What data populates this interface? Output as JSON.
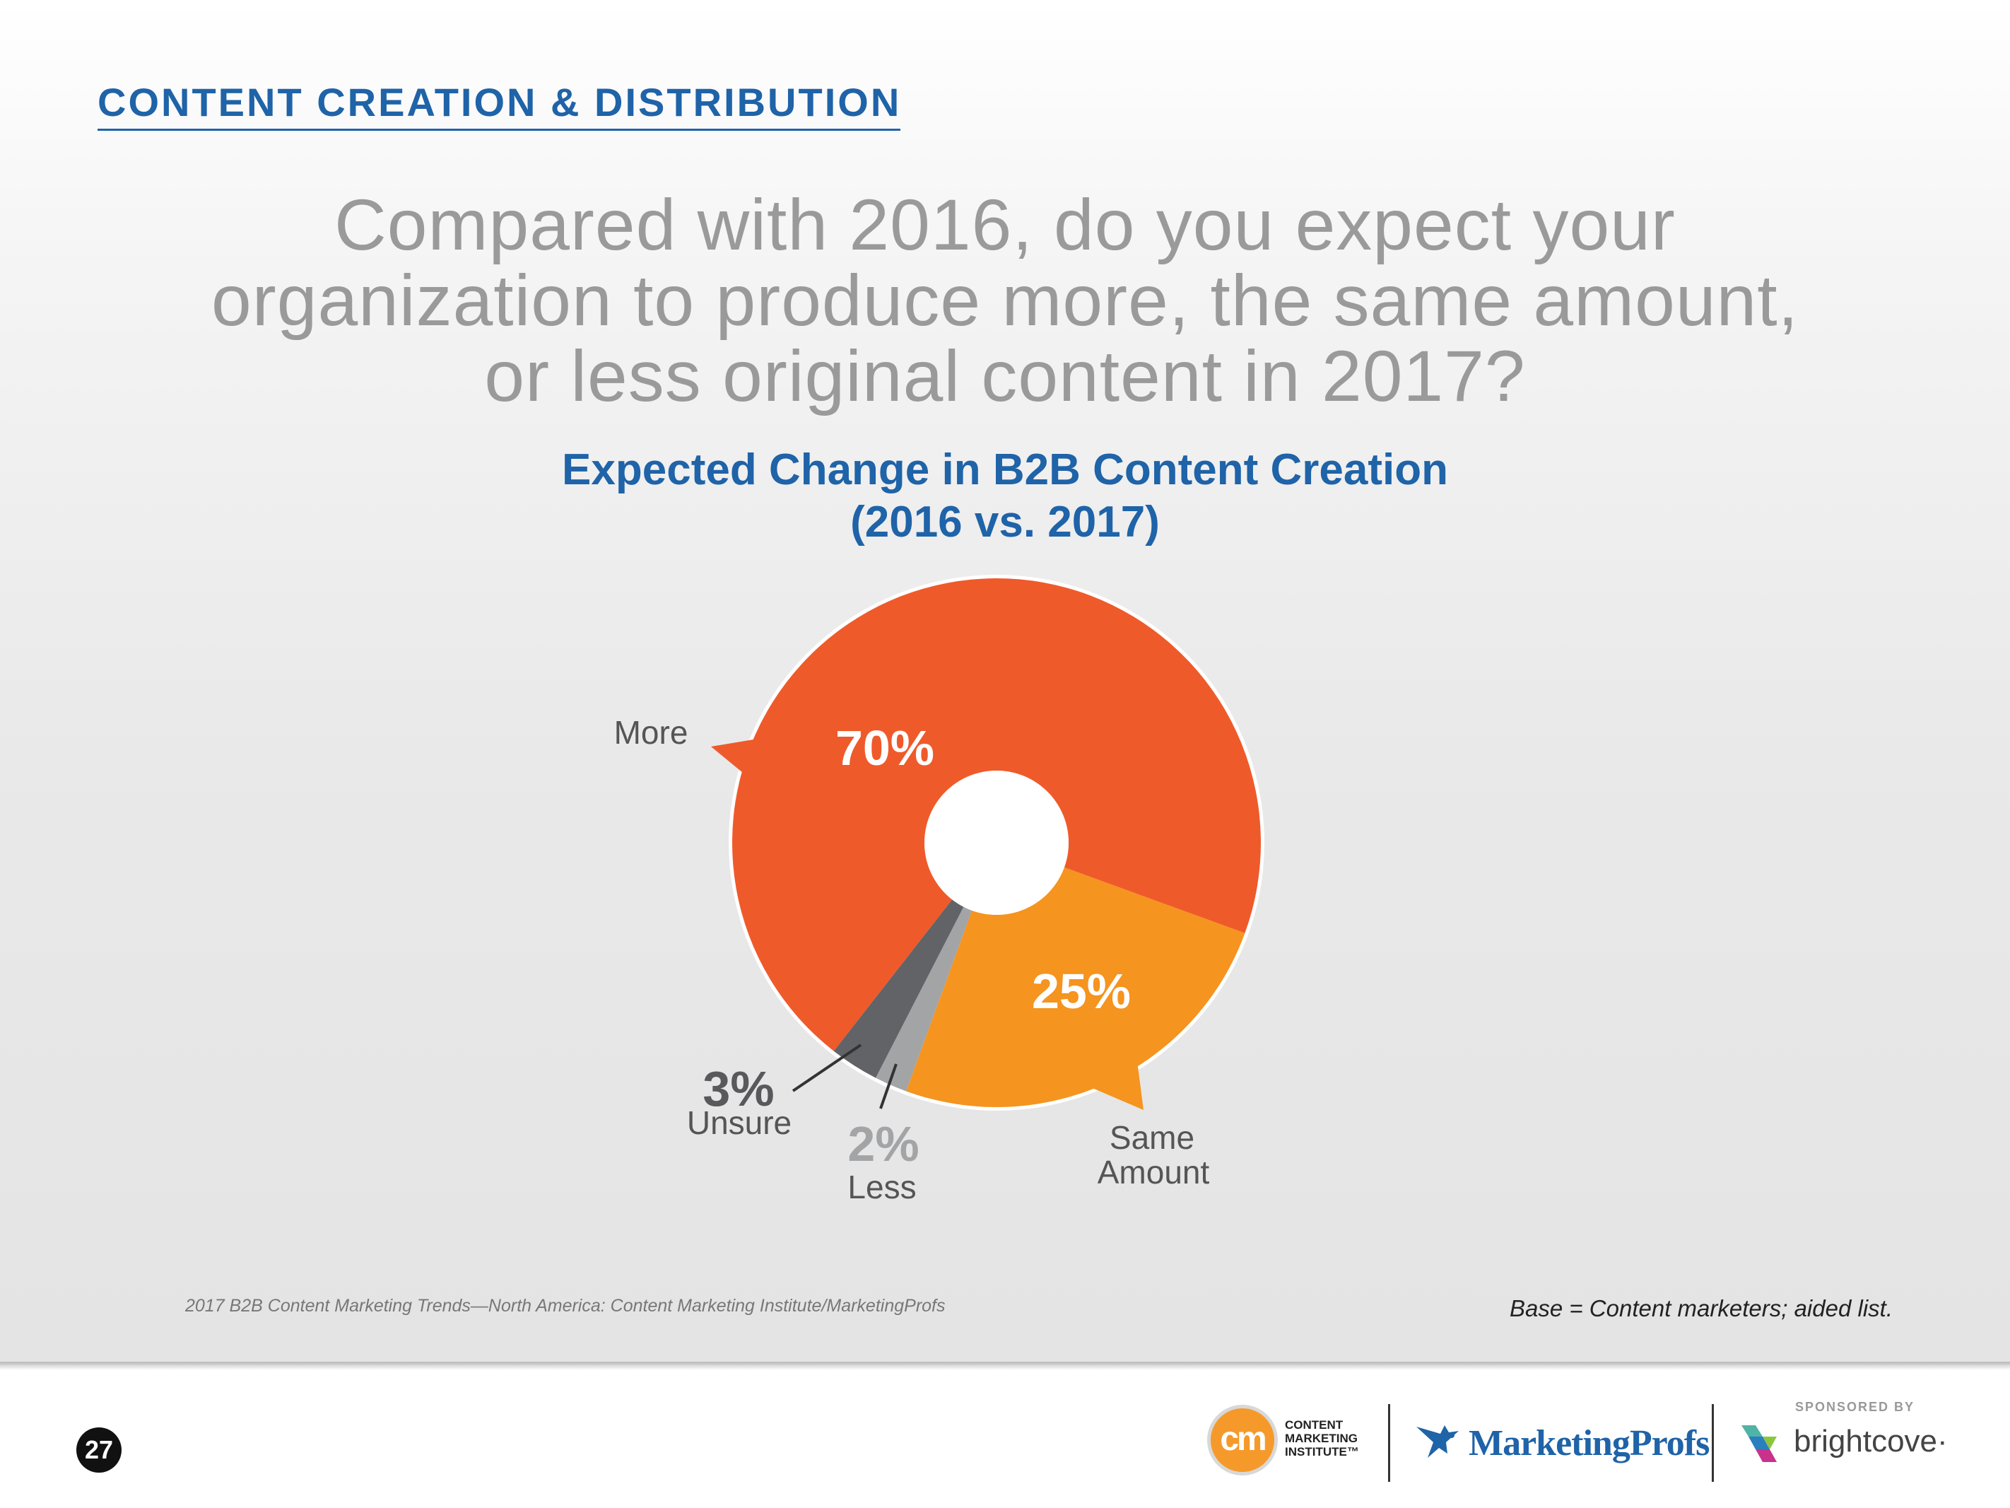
{
  "section": {
    "title": "CONTENT CREATION & DISTRIBUTION"
  },
  "question": {
    "lines": [
      "Compared with 2016, do you expect your",
      "organization to produce more, the same amount,",
      "or less original content in 2017?"
    ]
  },
  "chart_data": {
    "type": "pie",
    "variant": "donut",
    "title_lines": [
      "Expected Change in B2B Content Creation",
      "(2016 vs. 2017)"
    ],
    "series": [
      {
        "label": "More",
        "value": 70,
        "display": "70%",
        "color": "#ef5a2b"
      },
      {
        "label": "Same Amount",
        "label_lines": [
          "Same",
          "Amount"
        ],
        "value": 25,
        "display": "25%",
        "color": "#f5941f"
      },
      {
        "label": "Less",
        "value": 2,
        "display": "2%",
        "color": "#a3a4a6"
      },
      {
        "label": "Unsure",
        "value": 3,
        "display": "3%",
        "color": "#626366"
      }
    ]
  },
  "footer": {
    "source": "2017 B2B Content Marketing Trends—North America: Content Marketing Institute/MarketingProfs",
    "base_note": "Base = Content marketers; aided list.",
    "page_number": "27"
  },
  "logos": {
    "cmi_mark": "cm",
    "cmi_lines": [
      "CONTENT",
      "MARKETING",
      "INSTITUTE™"
    ],
    "marketingprofs": "MarketingProfs",
    "sponsored_by": "SPONSORED BY",
    "brightcove": "brightcove·"
  },
  "colors": {
    "brand_blue": "#1f63a8",
    "question_gray": "#9a9a9a"
  }
}
